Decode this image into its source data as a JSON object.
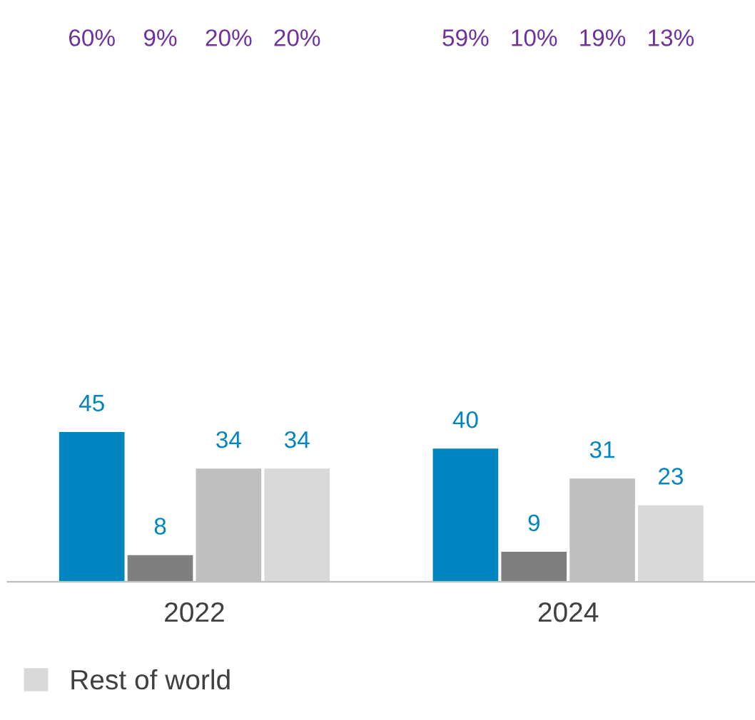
{
  "chart_data": {
    "type": "bar",
    "categories": [
      "2022",
      "2024"
    ],
    "series": [
      {
        "color": "#0085c0",
        "values": [
          45,
          40
        ]
      },
      {
        "color": "#7f7f7f",
        "values": [
          8,
          9
        ]
      },
      {
        "color": "#bfbfbf",
        "values": [
          34,
          31
        ]
      },
      {
        "name": "Rest of world",
        "color": "#d9d9d9",
        "values": [
          34,
          23
        ]
      }
    ],
    "data_labels": true,
    "legend": "bottom left",
    "grid": false,
    "annotations": [
      "60%",
      "9%",
      "20%",
      "20%",
      "59%",
      "10%",
      "19%",
      "13%"
    ]
  }
}
